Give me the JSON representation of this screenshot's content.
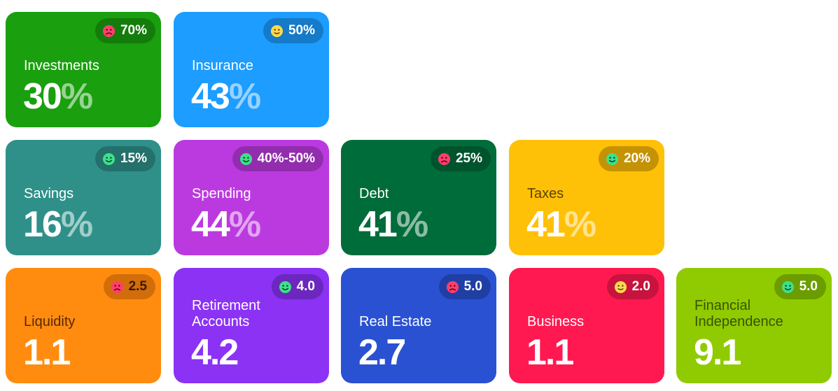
{
  "cards": [
    {
      "id": "investments",
      "label": "Investments",
      "value": "30",
      "unit": "%",
      "badge": "70%",
      "mood": "sad",
      "color": "#1a9f0f"
    },
    {
      "id": "insurance",
      "label": "Insurance",
      "value": "43",
      "unit": "%",
      "badge": "50%",
      "mood": "neutral",
      "color": "#1c9dff"
    },
    {
      "id": "savings",
      "label": "Savings",
      "value": "16",
      "unit": "%",
      "badge": "15%",
      "mood": "happy",
      "color": "#2f9089"
    },
    {
      "id": "spending",
      "label": "Spending",
      "value": "44",
      "unit": "%",
      "badge": "40%-50%",
      "mood": "happy",
      "color": "#bb3adf"
    },
    {
      "id": "debt",
      "label": "Debt",
      "value": "41",
      "unit": "%",
      "badge": "25%",
      "mood": "sad",
      "color": "#006c3a"
    },
    {
      "id": "taxes",
      "label": "Taxes",
      "value": "41",
      "unit": "%",
      "badge": "20%",
      "mood": "happy",
      "color": "#ffc107"
    },
    {
      "id": "liquidity",
      "label": "Liquidity",
      "value": "1.1",
      "unit": "",
      "badge": "2.5",
      "mood": "sad",
      "color": "#ff8c0f"
    },
    {
      "id": "retirement",
      "label": "Retirement Accounts",
      "value": "4.2",
      "unit": "",
      "badge": "4.0",
      "mood": "happy",
      "color": "#8b32f5"
    },
    {
      "id": "real-estate",
      "label": "Real Estate",
      "value": "2.7",
      "unit": "",
      "badge": "5.0",
      "mood": "sad",
      "color": "#2951d2"
    },
    {
      "id": "business",
      "label": "Business",
      "value": "1.1",
      "unit": "",
      "badge": "2.0",
      "mood": "neutral",
      "color": "#ff1950"
    },
    {
      "id": "financial-independence",
      "label": "Financial Independence",
      "value": "9.1",
      "unit": "",
      "badge": "5.0",
      "mood": "happy",
      "color": "#8fcb00"
    }
  ],
  "mood_colors": {
    "sad": "#ff3f6c",
    "neutral": "#ffd84d",
    "happy": "#3ee08a"
  }
}
